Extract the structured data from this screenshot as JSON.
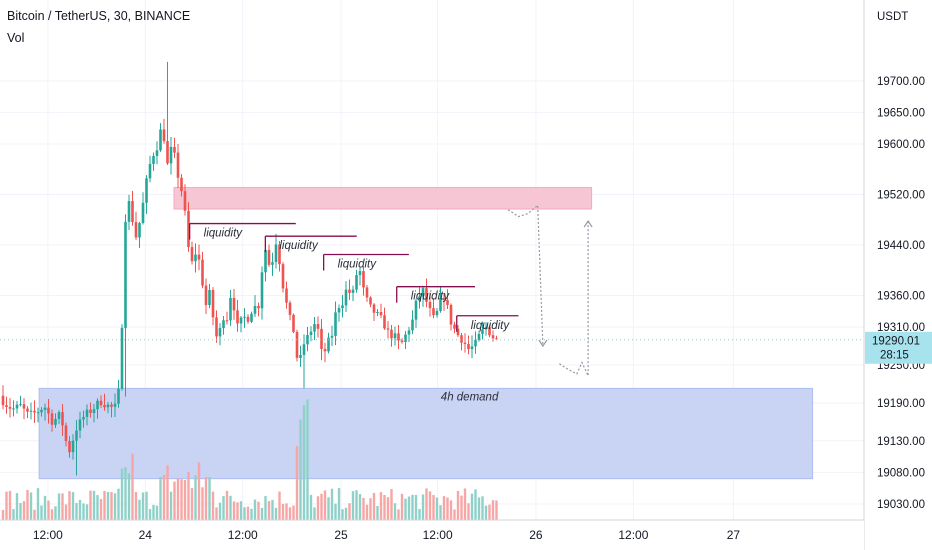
{
  "header": {
    "title": "Bitcoin / TetherUS, 30, BINANCE",
    "volume_label": "Vol"
  },
  "axis": {
    "currency": "USDT"
  },
  "colors": {
    "up": "#26a69a",
    "down": "#ef5350",
    "vol_up": "#8fd1c9",
    "vol_down": "#f6a6a4",
    "supply_zone": "#f7c6d4",
    "demand_zone": "#c9d3f4",
    "liquidity_line": "#880e4f",
    "price_label_bg": "#a7e3ec",
    "grid": "#f0f3fa",
    "axis_text": "#131722"
  },
  "chart_data": {
    "type": "candlestick",
    "title": "Bitcoin / TetherUS, 30, BINANCE",
    "symbol": "Bitcoin / TetherUS",
    "interval": "30",
    "exchange": "BINANCE",
    "y_unit": "USDT",
    "ylim": [
      19003,
      19790
    ],
    "y_ticks": [
      19700,
      19650,
      19600,
      19520,
      19440,
      19360,
      19310,
      19250,
      19190,
      19130,
      19080,
      19030
    ],
    "x_ticks": [
      {
        "label": "12:00",
        "pos": 0.055
      },
      {
        "label": "24",
        "pos": 0.167
      },
      {
        "label": "12:00",
        "pos": 0.279
      },
      {
        "label": "25",
        "pos": 0.392
      },
      {
        "label": "12:00",
        "pos": 0.503
      },
      {
        "label": "26",
        "pos": 0.616
      },
      {
        "label": "12:00",
        "pos": 0.728
      },
      {
        "label": "27",
        "pos": 0.843
      }
    ],
    "last_price": {
      "price": "19290.01",
      "value": 19290.01,
      "countdown": "28:15"
    },
    "grid": true,
    "volume": {
      "label": "Vol"
    },
    "zones": [
      {
        "name": "supply",
        "from": 19497,
        "to": 19531,
        "start": 0.2,
        "end": 0.68,
        "label": ""
      },
      {
        "name": "demand",
        "from": 19070,
        "to": 19213,
        "start": 0.045,
        "end": 0.934,
        "label": "4h demand"
      }
    ],
    "liquidity_levels": [
      {
        "price": 19474,
        "start": 0.218,
        "end": 0.34,
        "label": "liquidity"
      },
      {
        "price": 19454,
        "start": 0.305,
        "end": 0.41,
        "label": "liquidity"
      },
      {
        "price": 19425,
        "start": 0.372,
        "end": 0.47,
        "label": "liquidity"
      },
      {
        "price": 19374,
        "start": 0.456,
        "end": 0.546,
        "label": "liquidity"
      },
      {
        "price": 19328,
        "start": 0.525,
        "end": 0.596,
        "label": "liquidity"
      }
    ],
    "projection_path": [
      [
        0.584,
        19496
      ],
      [
        0.596,
        19485
      ],
      [
        0.607,
        19490
      ],
      [
        0.618,
        19503
      ],
      [
        0.624,
        19280
      ]
    ],
    "projection_path_2": [
      [
        0.643,
        19252
      ],
      [
        0.653,
        19243
      ],
      [
        0.663,
        19236
      ],
      [
        0.669,
        19254
      ],
      [
        0.676,
        19233
      ],
      [
        0.676,
        19478
      ]
    ]
  }
}
